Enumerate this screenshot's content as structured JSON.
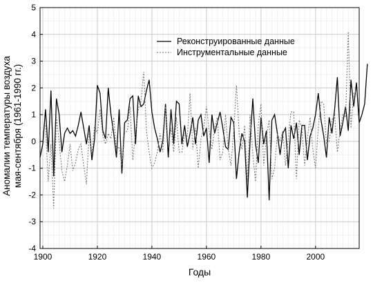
{
  "chart_data": {
    "type": "line",
    "title": "",
    "xlabel": "Годы",
    "ylabel_lines": [
      "Аномалии температуры воздуха",
      "мая-сентября (1961-1990 гг.)"
    ],
    "xlim": [
      1899,
      2016
    ],
    "ylim": [
      -4,
      5
    ],
    "x_ticks": [
      1900,
      1920,
      1940,
      1960,
      1980,
      2000
    ],
    "x_tick_labels": [
      "1900",
      "1920",
      "1940",
      "1960",
      "1980",
      "2000"
    ],
    "y_ticks": [
      -4,
      -3,
      -2,
      -1,
      0,
      1,
      2,
      3,
      4,
      5
    ],
    "y_tick_labels": [
      "-4",
      "-3",
      "-2",
      "-1",
      "0",
      "1",
      "2",
      "3",
      "4",
      "5"
    ],
    "grid": true,
    "legend_position": "top-right",
    "series": [
      {
        "name": "Реконструированные данные",
        "color": "#000000",
        "style": "solid",
        "x_start": 1899,
        "values": [
          -0.6,
          -0.1,
          1.2,
          -0.4,
          1.9,
          -1.3,
          1.6,
          1.0,
          -0.4,
          0.3,
          0.5,
          0.3,
          0.4,
          0.2,
          0.6,
          1.1,
          0.5,
          -0.1,
          0.6,
          -0.7,
          0.1,
          2.1,
          1.8,
          0.4,
          0.1,
          2.0,
          1.0,
          0.3,
          -0.6,
          1.2,
          -1.2,
          0.7,
          0.8,
          1.6,
          1.7,
          -0.1,
          1.7,
          1.3,
          1.4,
          1.9,
          2.3,
          1.1,
          0.5,
          0.1,
          -0.4,
          0.0,
          1.4,
          -0.6,
          1.2,
          -0.1,
          1.5,
          1.4,
          -0.1,
          0.6,
          -0.2,
          0.3,
          0.9,
          -0.1,
          0.8,
          1.0,
          0.2,
          0.5,
          -0.8,
          1.0,
          0.3,
          0.7,
          1.1,
          0.5,
          -0.2,
          -0.3,
          0.9,
          0.7,
          -1.4,
          -0.4,
          0.3,
          0.0,
          -2.1,
          0.0,
          1.6,
          -0.1,
          -0.8,
          0.9,
          -0.1,
          0.4,
          -2.2,
          0.8,
          1.0,
          0.3,
          -0.5,
          0.3,
          0.5,
          -1.0,
          0.6,
          0.1,
          0.7,
          -0.5,
          0.6,
          0.6,
          -0.7,
          0.2,
          0.5,
          1.0,
          1.8,
          0.8,
          0.2,
          -0.6,
          0.9,
          0.3,
          1.2,
          2.4,
          0.2,
          0.7,
          1.3,
          0.4,
          2.3,
          1.3,
          2.2,
          0.7,
          1.0,
          1.4,
          2.9
        ]
      },
      {
        "name": "Инструментальные данные",
        "color": "#777777",
        "style": "dotted",
        "x_start": 1901,
        "values": [
          0.6,
          -1.5,
          -0.1,
          -2.5,
          0.9,
          0.0,
          -1.1,
          -1.5,
          -0.9,
          -0.1,
          -1.1,
          -0.8,
          -0.3,
          -0.1,
          -0.9,
          -1.6,
          0.3,
          -0.5,
          0.6,
          0.3,
          1.2,
          0.2,
          -0.1,
          0.3,
          0.1,
          0.9,
          -0.3,
          -0.2,
          -0.9,
          0.3,
          0.4,
          1.3,
          -0.7,
          0.3,
          1.2,
          1.5,
          2.6,
          0.4,
          -0.4,
          -1.0,
          -0.8,
          -0.4,
          0.3,
          -0.4,
          1.3,
          -0.2,
          0.5,
          -0.4,
          0.9,
          -0.4,
          -0.4,
          0.3,
          0.2,
          1.8,
          -0.3,
          0.5,
          -1.0,
          0.1,
          0.5,
          1.3,
          0.4,
          -0.3,
          0.5,
          0.9,
          -0.7,
          -0.4,
          1.0,
          -0.3,
          -0.9,
          0.4,
          2.1,
          0.3,
          -0.3,
          0.6,
          -1.5,
          1.0,
          -0.5,
          -1.5,
          0.6,
          1.4,
          -0.9,
          0.2,
          0.8,
          -1.4,
          -1.0,
          0.3,
          0.0,
          0.4,
          -0.9,
          0.1,
          1.1,
          1.1,
          -1.4,
          0.8,
          0.5,
          -0.9,
          0.1,
          0.9,
          -0.3,
          -1.0,
          0.5,
          1.5,
          1.4,
          -0.1,
          0.0,
          0.8,
          1.0,
          -0.4,
          0.4,
          1.0,
          0.9,
          4.1,
          0.5,
          1.8,
          1.9
        ]
      }
    ]
  }
}
